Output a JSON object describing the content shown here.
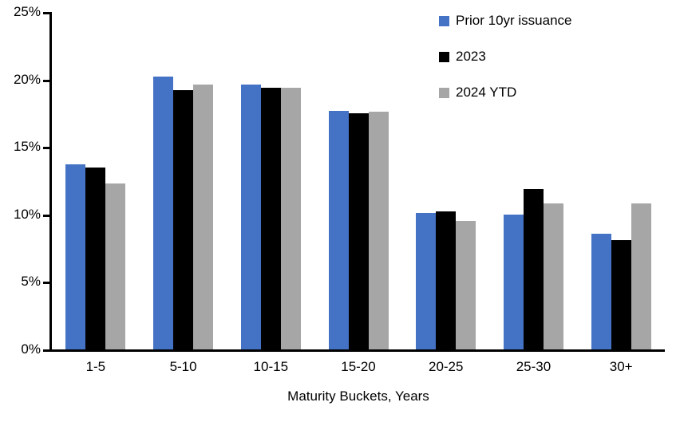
{
  "background": "#FFFFFF",
  "chart_data": {
    "type": "bar",
    "title": "",
    "xlabel": "Maturity Buckets, Years",
    "ylabel": "",
    "ylim": [
      0,
      25
    ],
    "yticks": [
      0,
      5,
      10,
      15,
      20,
      25
    ],
    "ytick_suffix": "%",
    "grid": false,
    "legend_position": "top-right",
    "categories": [
      "1-5",
      "5-10",
      "10-15",
      "15-20",
      "20-25",
      "25-30",
      "30+"
    ],
    "series": [
      {
        "name": "Prior 10yr issuance",
        "color": "#4472C4",
        "values": [
          13.7,
          20.2,
          19.6,
          17.7,
          10.1,
          10.0,
          8.6
        ]
      },
      {
        "name": "2023",
        "color": "#000000",
        "values": [
          13.5,
          19.2,
          19.4,
          17.5,
          10.2,
          11.9,
          8.1
        ]
      },
      {
        "name": "2024 YTD",
        "color": "#A6A6A6",
        "values": [
          12.3,
          19.6,
          19.4,
          17.6,
          9.5,
          10.8,
          10.8
        ]
      }
    ]
  }
}
